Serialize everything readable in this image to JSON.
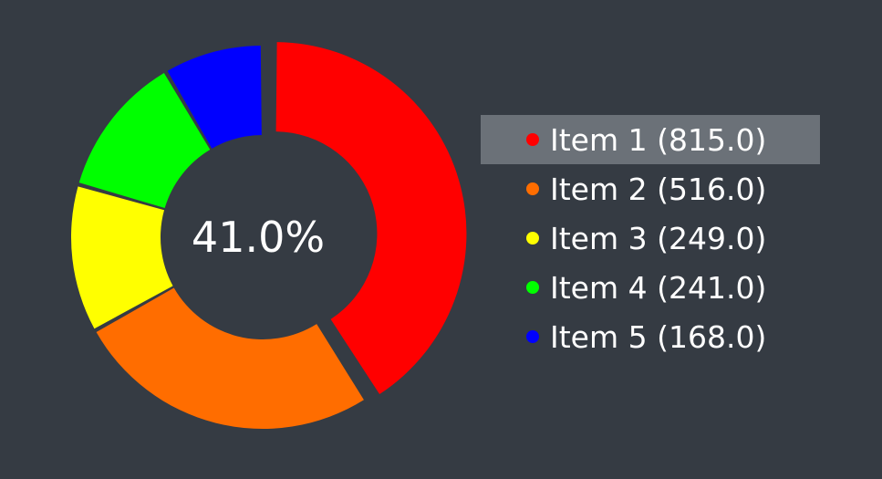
{
  "chart_data": {
    "type": "pie",
    "style": "donut",
    "center_label": "41.0%",
    "selected_index": 0,
    "slices": [
      {
        "label": "Item 1 (815.0)",
        "value": 815.0,
        "color": "#ff0000"
      },
      {
        "label": "Item 2 (516.0)",
        "value": 516.0,
        "color": "#ff6d00"
      },
      {
        "label": "Item 3 (249.0)",
        "value": 249.0,
        "color": "#ffff00"
      },
      {
        "label": "Item 4 (241.0)",
        "value": 241.0,
        "color": "#00ff00"
      },
      {
        "label": "Item 5 (168.0)",
        "value": 168.0,
        "color": "#0000ff"
      }
    ],
    "legend_position": "right"
  },
  "colors": {
    "background": "#353b43",
    "legend_highlight": "#6b7178",
    "text": "#ffffff"
  }
}
